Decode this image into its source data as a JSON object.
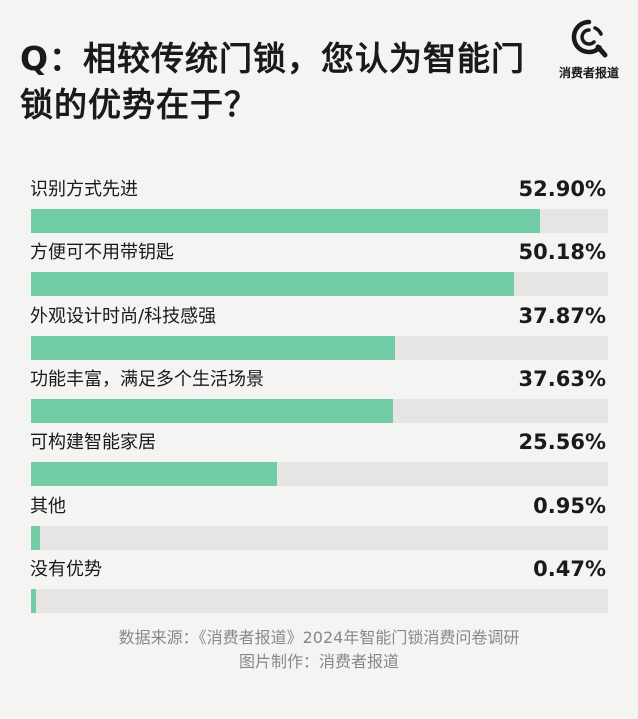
{
  "title": "Q：相较传统门锁，您认为智能门锁的优势在于？",
  "logo": {
    "name": "消费者报道",
    "icon": "magnifier-c-icon"
  },
  "source": [
    "数据来源：《消费者报道》2024年智能门锁消费问卷调研",
    "图片制作：消费者报道"
  ],
  "colors": {
    "bar": "#72cca5",
    "track": "#e7e5e3",
    "background": "#f4f4f2"
  },
  "chart_data": {
    "type": "bar",
    "orientation": "horizontal",
    "title": "Q：相较传统门锁，您认为智能门锁的优势在于？",
    "categories": [
      "识别方式先进",
      "方便可不用带钥匙",
      "外观设计时尚/科技感强",
      "功能丰富，满足多个生活场景",
      "可构建智能家居",
      "其他",
      "没有优势"
    ],
    "values": [
      52.9,
      50.18,
      37.87,
      37.63,
      25.56,
      0.95,
      0.47
    ],
    "value_labels": [
      "52.90%",
      "50.18%",
      "37.87%",
      "37.63%",
      "25.56%",
      "0.95%",
      "0.47%"
    ],
    "xlim": [
      0,
      60
    ],
    "unit": "%",
    "grid": false,
    "legend": "none"
  }
}
